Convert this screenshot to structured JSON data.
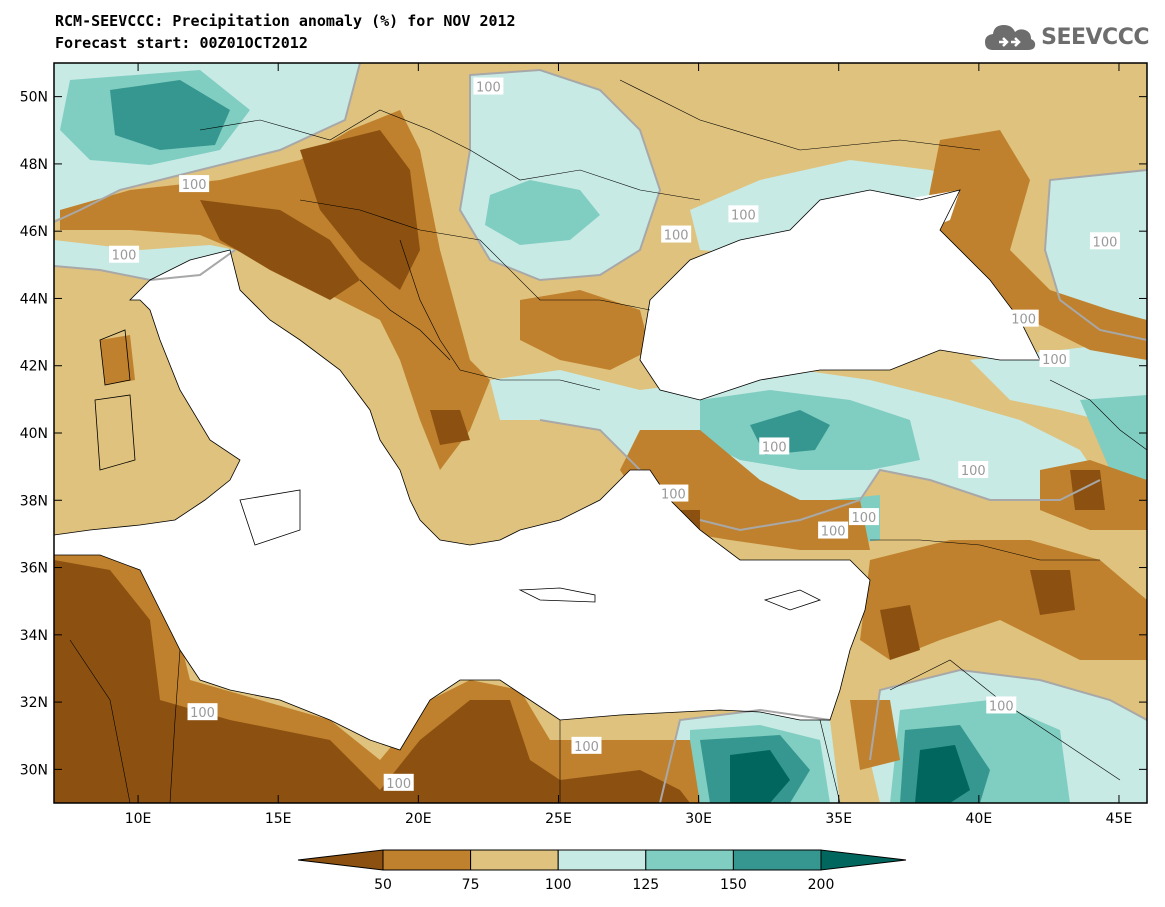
{
  "title": {
    "line1": "RCM-SEEVCCC: Precipitation anomaly (%) for NOV 2012",
    "line2": "Forecast start: 00Z01OCT2012"
  },
  "logo": {
    "text": "SEEVCCC",
    "icon": "cloud-icon"
  },
  "map": {
    "lon_range": [
      7,
      46
    ],
    "lat_range": [
      29,
      51
    ],
    "lat_ticks": [
      {
        "value": 50,
        "label": "50N"
      },
      {
        "value": 48,
        "label": "48N"
      },
      {
        "value": 46,
        "label": "46N"
      },
      {
        "value": 44,
        "label": "44N"
      },
      {
        "value": 42,
        "label": "42N"
      },
      {
        "value": 40,
        "label": "40N"
      },
      {
        "value": 38,
        "label": "38N"
      },
      {
        "value": 36,
        "label": "36N"
      },
      {
        "value": 34,
        "label": "34N"
      },
      {
        "value": 32,
        "label": "32N"
      },
      {
        "value": 30,
        "label": "30N"
      }
    ],
    "lon_ticks": [
      {
        "value": 10,
        "label": "10E"
      },
      {
        "value": 15,
        "label": "15E"
      },
      {
        "value": 20,
        "label": "20E"
      },
      {
        "value": 25,
        "label": "25E"
      },
      {
        "value": 30,
        "label": "30E"
      },
      {
        "value": 35,
        "label": "35E"
      },
      {
        "value": 40,
        "label": "40E"
      },
      {
        "value": 45,
        "label": "45E"
      }
    ],
    "contour_labels": [
      {
        "text": "100",
        "lon": 22.5,
        "lat": 50.3
      },
      {
        "text": "100",
        "lon": 12.0,
        "lat": 47.4
      },
      {
        "text": "100",
        "lon": 9.5,
        "lat": 45.3
      },
      {
        "text": "100",
        "lon": 29.2,
        "lat": 45.9
      },
      {
        "text": "100",
        "lon": 31.6,
        "lat": 46.5
      },
      {
        "text": "100",
        "lon": 44.5,
        "lat": 45.7
      },
      {
        "text": "100",
        "lon": 41.6,
        "lat": 43.4
      },
      {
        "text": "100",
        "lon": 42.7,
        "lat": 42.2
      },
      {
        "text": "100",
        "lon": 32.7,
        "lat": 39.6
      },
      {
        "text": "100",
        "lon": 39.8,
        "lat": 38.9
      },
      {
        "text": "100",
        "lon": 29.1,
        "lat": 38.2
      },
      {
        "text": "100",
        "lon": 34.8,
        "lat": 37.1
      },
      {
        "text": "100",
        "lon": 35.9,
        "lat": 37.5
      },
      {
        "text": "100",
        "lon": 12.3,
        "lat": 31.7
      },
      {
        "text": "100",
        "lon": 40.8,
        "lat": 31.9
      },
      {
        "text": "100",
        "lon": 26.0,
        "lat": 30.7
      },
      {
        "text": "100",
        "lon": 19.3,
        "lat": 29.6
      }
    ]
  },
  "colorbar": {
    "ticks": [
      "50",
      "75",
      "100",
      "125",
      "150",
      "200"
    ],
    "colors": [
      "#8c5111",
      "#bf812d",
      "#dfc27d",
      "#c7eae5",
      "#80cdc1",
      "#35978f",
      "#01665e"
    ]
  },
  "palette": {
    "lt50": "#8c5111",
    "50_75": "#bf812d",
    "75_100": "#dfc27d",
    "100_125": "#c7eae5",
    "125_150": "#80cdc1",
    "150_200": "#35978f",
    "gt200": "#01665e",
    "sea": "#ffffff",
    "contour100": "#a8a8a8"
  }
}
